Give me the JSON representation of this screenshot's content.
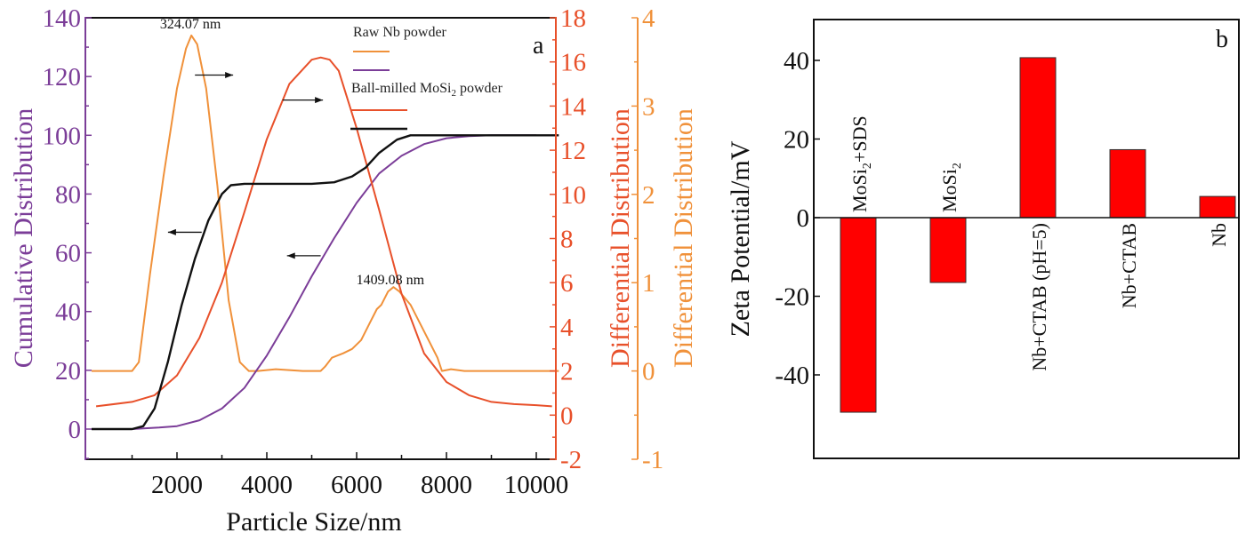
{
  "chart_data": [
    {
      "panel": "a",
      "type": "line",
      "panel_label": "a",
      "xlabel": "Particle Size/nm",
      "x_ticks": [
        "2000",
        "4000",
        "6000",
        "8000",
        "10000"
      ],
      "x_tick_values": [
        2000,
        4000,
        6000,
        8000,
        10000
      ],
      "xlim": [
        0,
        10500
      ],
      "axes": {
        "left": {
          "label": "Cumulative Distribution",
          "color": "#7b3d98",
          "ylim": [
            -10,
            140
          ],
          "ticks": [
            "0",
            "20",
            "40",
            "60",
            "80",
            "100",
            "120",
            "140"
          ],
          "tick_values": [
            0,
            20,
            40,
            60,
            80,
            100,
            120,
            140
          ]
        },
        "right1": {
          "label": "Differential Distribution",
          "color": "#e8502a",
          "ylim": [
            -2,
            18
          ],
          "ticks": [
            "-2",
            "0",
            "2",
            "4",
            "6",
            "8",
            "10",
            "12",
            "14",
            "16",
            "18"
          ],
          "tick_values": [
            -2,
            0,
            2,
            4,
            6,
            8,
            10,
            12,
            14,
            16,
            18
          ]
        },
        "right2": {
          "label": "Differential Distribution",
          "color": "#f0913a",
          "ylim": [
            -1,
            4
          ],
          "ticks": [
            "-1",
            "0",
            "1",
            "2",
            "3",
            "4"
          ],
          "tick_values": [
            -1,
            0,
            1,
            2,
            3,
            4
          ]
        }
      },
      "legend": {
        "placement": "top-right",
        "groups": [
          {
            "title": "Raw Nb powder",
            "entries": [
              {
                "color": "#f0913a"
              },
              {
                "color": "#7b3d98"
              }
            ]
          },
          {
            "title": "Ball-milled MoSi₂ powder",
            "title_main": "Ball-milled MoSi",
            "title_sub": "2",
            "title_tail": " powder",
            "entries": [
              {
                "color": "#e8502a"
              },
              {
                "color": "#111111"
              }
            ]
          }
        ]
      },
      "annotations": [
        {
          "text": "324.07 nm",
          "x": 2300,
          "y_axis": "right2",
          "y": 3.8
        },
        {
          "text": "1409.08 nm",
          "x": 6750,
          "y_axis": "right2",
          "y": 0.9
        }
      ],
      "arrows": [
        {
          "direction": "right",
          "x_from": 2400,
          "x_to": 3250,
          "y_axis": "left",
          "y": 120.5
        },
        {
          "direction": "right",
          "x_from": 4350,
          "x_to": 5250,
          "y_axis": "left",
          "y": 112
        },
        {
          "direction": "left",
          "x_from": 2550,
          "x_to": 1800,
          "y_axis": "left",
          "y": 67
        },
        {
          "direction": "left",
          "x_from": 5200,
          "x_to": 4450,
          "y_axis": "left",
          "y": 59
        }
      ],
      "series": [
        {
          "name": "Raw Nb powder - differential",
          "axis": "right2",
          "color": "#f0913a",
          "x": [
            100,
            1000,
            1150,
            1400,
            1700,
            2000,
            2200,
            2320,
            2450,
            2650,
            2900,
            3150,
            3400,
            3600,
            3800,
            4200,
            4800,
            5200,
            5300,
            5450,
            5700,
            5900,
            6100,
            6300,
            6450,
            6550,
            6700,
            6820,
            6950,
            7200,
            7500,
            7800,
            7900,
            8100,
            8400,
            9000,
            10500
          ],
          "y": [
            0.0,
            0.0,
            0.1,
            1.1,
            2.2,
            3.2,
            3.65,
            3.8,
            3.7,
            3.2,
            2.1,
            0.8,
            0.1,
            0.0,
            0.0,
            0.02,
            0.0,
            0.0,
            0.05,
            0.15,
            0.2,
            0.25,
            0.35,
            0.55,
            0.7,
            0.75,
            0.9,
            0.95,
            0.9,
            0.75,
            0.45,
            0.15,
            0.0,
            0.02,
            0.0,
            0.0,
            0.0
          ]
        },
        {
          "name": "Raw Nb powder - cumulative",
          "axis": "left",
          "color": "#7b3d98",
          "x": [
            1000,
            1600,
            2000,
            2500,
            3000,
            3500,
            4000,
            4500,
            5000,
            5500,
            6000,
            6500,
            7000,
            7500,
            8000,
            8500,
            9000,
            10000
          ],
          "y": [
            0,
            0.5,
            1,
            3,
            7,
            14,
            25,
            38,
            52,
            65,
            77,
            87,
            93,
            97,
            99,
            99.7,
            100,
            100
          ]
        },
        {
          "name": "Ball-milled MoSi2 powder - differential",
          "axis": "right1",
          "color": "#e8502a",
          "x": [
            200,
            1000,
            1500,
            2000,
            2500,
            3000,
            3500,
            4000,
            4500,
            5000,
            5200,
            5400,
            5600,
            6000,
            6500,
            7000,
            7500,
            8000,
            8500,
            9000,
            9500,
            10000,
            10350
          ],
          "y": [
            0.4,
            0.6,
            0.9,
            1.8,
            3.5,
            6.0,
            9.2,
            12.5,
            15.0,
            16.1,
            16.2,
            16.1,
            15.6,
            13.0,
            9.3,
            5.5,
            2.8,
            1.5,
            0.9,
            0.6,
            0.5,
            0.45,
            0.4
          ]
        },
        {
          "name": "Ball-milled MoSi2 powder - cumulative",
          "axis": "left",
          "color": "#111111",
          "x": [
            100,
            700,
            1000,
            1250,
            1500,
            1800,
            2100,
            2400,
            2700,
            3000,
            3200,
            3500,
            4000,
            4500,
            5000,
            5500,
            5900,
            6200,
            6500,
            6900,
            7200,
            7500,
            8000,
            9000,
            10500
          ],
          "y": [
            0,
            0,
            0,
            1,
            7,
            23,
            42,
            58,
            71,
            80,
            83,
            83.5,
            83.5,
            83.5,
            83.5,
            84,
            86,
            89,
            94,
            98.5,
            100,
            100,
            100,
            100,
            100
          ]
        }
      ]
    },
    {
      "panel": "b",
      "type": "bar",
      "panel_label": "b",
      "ylabel": "Zeta Potential/mV",
      "xlabel": "",
      "ylim": [
        -60,
        50
      ],
      "y_ticks": [
        "-40",
        "-20",
        "0",
        "20",
        "40"
      ],
      "y_tick_values": [
        -40,
        -20,
        0,
        20,
        40
      ],
      "bar_color": "#ff0000",
      "categories": [
        "MoSi₂+SDS",
        "MoSi₂",
        "Nb+CTAB (pH=5)",
        "Nb+CTAB",
        "Nb"
      ],
      "category_parts": [
        {
          "main": "MoSi",
          "sub": "2",
          "tail": "+SDS"
        },
        {
          "main": "MoSi",
          "sub": "2",
          "tail": ""
        },
        {
          "main": "Nb+CTAB (pH=5)",
          "sub": "",
          "tail": ""
        },
        {
          "main": "Nb+CTAB",
          "sub": "",
          "tail": ""
        },
        {
          "main": "Nb",
          "sub": "",
          "tail": ""
        }
      ],
      "values": [
        -49.5,
        -16.5,
        40.7,
        17.3,
        5.4
      ]
    }
  ]
}
